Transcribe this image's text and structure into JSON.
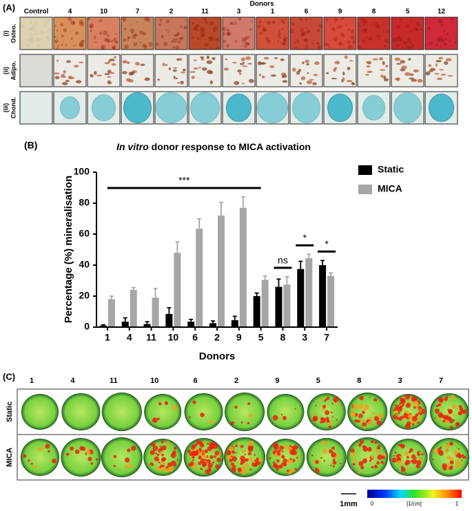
{
  "panel_a": {
    "label": "(A)",
    "columns_title": "Donors",
    "columns": [
      "Control",
      "4",
      "10",
      "7",
      "2",
      "11",
      "3",
      "1",
      "6",
      "9",
      "8",
      "5",
      "12"
    ],
    "rows": [
      {
        "index": "(i)",
        "label": "Osteo."
      },
      {
        "index": "(ii)",
        "label": "Adipo."
      },
      {
        "index": "(iii)",
        "label": "Chond."
      }
    ]
  },
  "chart_data": {
    "type": "bar",
    "panel_label": "(B)",
    "title_emphasis": "In vitro",
    "title": "donor response to MICA activation",
    "ylabel": "Percentage (%) mineralisation",
    "xlabel": "Donors",
    "categories": [
      "1",
      "4",
      "11",
      "10",
      "6",
      "2",
      "9",
      "5",
      "8",
      "3",
      "7"
    ],
    "series": [
      {
        "name": "Static",
        "color": "#000000",
        "values": [
          1,
          3.5,
          2,
          8.5,
          3.5,
          2.5,
          4.5,
          20,
          26,
          37.5,
          40
        ],
        "errors": [
          0.5,
          2.5,
          1.5,
          4,
          1.5,
          1.5,
          2.5,
          2,
          5,
          5,
          3
        ]
      },
      {
        "name": "MICA",
        "color": "#a6a6a6",
        "values": [
          18,
          24,
          19,
          48,
          63.5,
          72,
          77,
          30.5,
          27.5,
          44.5,
          33
        ],
        "errors": [
          2,
          1.5,
          6,
          7,
          6.5,
          8.5,
          7,
          2.5,
          5,
          2.5,
          2
        ]
      }
    ],
    "ylim": [
      0,
      100
    ],
    "yticks": [
      0,
      20,
      40,
      60,
      80,
      100
    ],
    "legend": "right",
    "annotations": [
      {
        "text": "***",
        "from": "1",
        "to": "5"
      },
      {
        "text": "ns",
        "from": "8",
        "to": "8"
      },
      {
        "text": "*",
        "from": "3",
        "to": "3"
      },
      {
        "text": "*",
        "from": "7",
        "to": "7"
      }
    ]
  },
  "panel_c": {
    "label": "(C)",
    "columns": [
      "1",
      "4",
      "11",
      "10",
      "6",
      "2",
      "9",
      "5",
      "8",
      "3",
      "7"
    ],
    "rows": [
      "Static",
      "MICA"
    ],
    "scale_bar": "1mm",
    "colorbar": {
      "min_label": "0",
      "unit": "[1/cm]",
      "max_label": "1"
    }
  }
}
